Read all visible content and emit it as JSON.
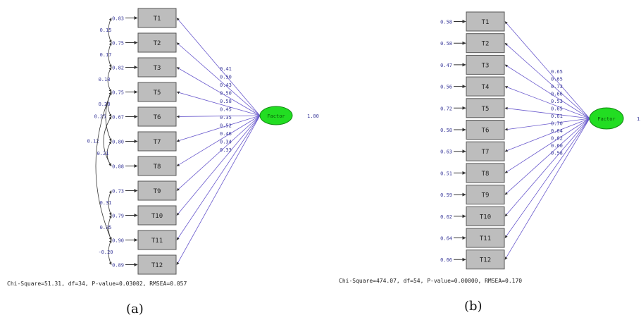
{
  "panels": [
    {
      "id": "a",
      "caption": "(a)",
      "indicators": [
        "T1",
        "T2",
        "T3",
        "T5",
        "T6",
        "T7",
        "T8",
        "T9",
        "T10",
        "T11",
        "T12"
      ],
      "errors": [
        "0.83",
        "0.75",
        "0.82",
        "0.75",
        "0.67",
        "0.80",
        "0.88",
        "0.73",
        "0.79",
        "0.90",
        "0.89"
      ],
      "loadings": [
        "0.41",
        "0.50",
        "0.43",
        "0.50",
        "0.58",
        "0.45",
        "0.35",
        "0.52",
        "0.46",
        "0.34",
        "0.33"
      ],
      "factor": {
        "label": "Factor",
        "variance": "1.00"
      },
      "covariances": [
        "0.15",
        "0.17",
        "0.18",
        "0.28",
        "0.25",
        "0.12",
        "0.21",
        "0.31",
        "0.35",
        "-0.20"
      ],
      "fit": "Chi-Square=51.31, df=34, P-value=0.03002, RMSEA=0.057"
    },
    {
      "id": "b",
      "caption": "(b)",
      "indicators": [
        "T1",
        "T2",
        "T3",
        "T4",
        "T5",
        "T6",
        "T7",
        "T8",
        "T9",
        "T10",
        "T11",
        "T12"
      ],
      "errors": [
        "0.58",
        "0.58",
        "0.47",
        "0.56",
        "0.72",
        "0.58",
        "0.63",
        "0.51",
        "0.59",
        "0.62",
        "0.64",
        "0.66"
      ],
      "loadings": [
        "0.65",
        "0.65",
        "0.73",
        "0.66",
        "0.53",
        "0.65",
        "0.61",
        "0.70",
        "0.64",
        "0.62",
        "0.60",
        "0.58"
      ],
      "factor": {
        "label": "Factor",
        "variance": "1."
      },
      "covariances": [],
      "fit": "Chi-Square=474.07, df=54, P-value=0.00000, RMSEA=0.170"
    }
  ]
}
